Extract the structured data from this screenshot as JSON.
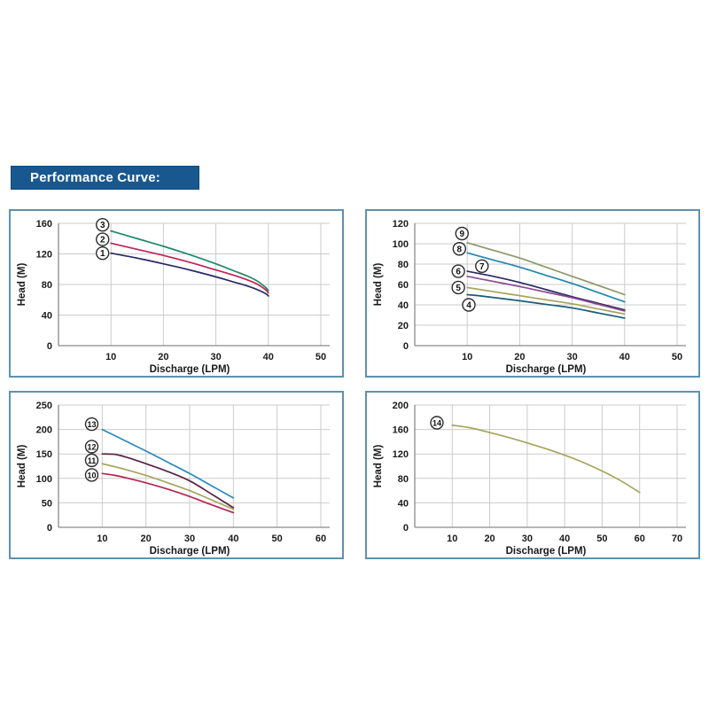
{
  "header": {
    "title": "Performance Curve:",
    "bg": "#19578f",
    "fg": "#ffffff"
  },
  "colors": {
    "panel_border": "#5d92b1",
    "grid": "#cbcbcb",
    "axis": "#8a8a8a",
    "text": "#1a1a1a",
    "badge_stroke": "#2b2b2b",
    "badge_fill": "#ffffff"
  },
  "chart_data": [
    {
      "id": "top-left",
      "type": "line",
      "title": "",
      "xlabel": "Discharge (LPM)",
      "ylabel": "Head (M)",
      "xlim": [
        0,
        50
      ],
      "ylim": [
        0,
        160
      ],
      "xticks": [
        10,
        20,
        30,
        40,
        50
      ],
      "yticks": [
        0,
        40,
        80,
        120,
        160
      ],
      "grid": true,
      "legend": "numbered-badges-at-curve-start",
      "series": [
        {
          "name": "3",
          "color": "#1d8a6a",
          "badge": [
            8.4,
            158
          ],
          "points": [
            [
              10,
              150
            ],
            [
              15,
              140
            ],
            [
              20,
              130
            ],
            [
              25,
              119
            ],
            [
              30,
              107
            ],
            [
              33,
              99
            ],
            [
              36,
              91
            ],
            [
              38,
              84
            ],
            [
              39.5,
              76
            ],
            [
              40,
              72
            ]
          ]
        },
        {
          "name": "2",
          "color": "#c02456",
          "badge": [
            8.4,
            139
          ],
          "points": [
            [
              10,
              134
            ],
            [
              15,
              126
            ],
            [
              20,
              118
            ],
            [
              25,
              109
            ],
            [
              30,
              99
            ],
            [
              33,
              93
            ],
            [
              36,
              86
            ],
            [
              38,
              80
            ],
            [
              39.5,
              73
            ],
            [
              40,
              69
            ]
          ]
        },
        {
          "name": "1",
          "color": "#2b2a66",
          "badge": [
            8.4,
            121
          ],
          "points": [
            [
              10,
              121
            ],
            [
              15,
              114.5
            ],
            [
              20,
              107
            ],
            [
              25,
              99
            ],
            [
              30,
              90
            ],
            [
              33,
              84
            ],
            [
              36,
              78
            ],
            [
              38,
              73
            ],
            [
              39.5,
              68
            ],
            [
              40,
              65
            ]
          ]
        }
      ]
    },
    {
      "id": "top-right",
      "type": "line",
      "title": "",
      "xlabel": "Discharge (LPM)",
      "ylabel": "Head (M)",
      "xlim": [
        0,
        50
      ],
      "ylim": [
        0,
        120
      ],
      "xticks": [
        10,
        20,
        30,
        40,
        50
      ],
      "yticks": [
        0,
        20,
        40,
        60,
        80,
        100,
        120
      ],
      "grid": true,
      "legend": "numbered-badges-at-curve-start",
      "series": [
        {
          "name": "9",
          "color": "#8e9768",
          "badge": [
            9,
            110
          ],
          "points": [
            [
              10,
              101
            ],
            [
              15,
              93.5
            ],
            [
              20,
              86
            ],
            [
              25,
              77
            ],
            [
              30,
              68
            ],
            [
              35,
              59
            ],
            [
              40,
              50
            ]
          ]
        },
        {
          "name": "8",
          "color": "#2386ae",
          "badge": [
            8.5,
            95
          ],
          "points": [
            [
              10,
              91
            ],
            [
              15,
              84
            ],
            [
              20,
              77
            ],
            [
              25,
              69
            ],
            [
              30,
              61
            ],
            [
              35,
              52
            ],
            [
              40,
              43
            ]
          ]
        },
        {
          "name": "7",
          "color": "#2b2a66",
          "badge": [
            12.8,
            78
          ],
          "points": [
            [
              10,
              73
            ],
            [
              15,
              68
            ],
            [
              20,
              62
            ],
            [
              25,
              55
            ],
            [
              30,
              48
            ],
            [
              35,
              41.5
            ],
            [
              40,
              35
            ]
          ]
        },
        {
          "name": "6",
          "color": "#8c4a92",
          "badge": [
            8.3,
            73
          ],
          "points": [
            [
              10,
              68
            ],
            [
              15,
              63
            ],
            [
              20,
              58
            ],
            [
              25,
              52.5
            ],
            [
              30,
              47
            ],
            [
              35,
              40.5
            ],
            [
              40,
              34
            ]
          ]
        },
        {
          "name": "5",
          "color": "#a6a55e",
          "badge": [
            8.3,
            57
          ],
          "points": [
            [
              10,
              57
            ],
            [
              15,
              53
            ],
            [
              20,
              49
            ],
            [
              25,
              45
            ],
            [
              30,
              41
            ],
            [
              35,
              36
            ],
            [
              40,
              31
            ]
          ]
        },
        {
          "name": "4",
          "color": "#1b5a78",
          "badge": [
            10.3,
            40
          ],
          "points": [
            [
              10,
              50
            ],
            [
              13,
              48.5
            ],
            [
              20,
              44
            ],
            [
              25,
              40.5
            ],
            [
              30,
              37
            ],
            [
              35,
              32
            ],
            [
              40,
              27
            ]
          ]
        }
      ]
    },
    {
      "id": "bottom-left",
      "type": "line",
      "title": "",
      "xlabel": "Discharge (LPM)",
      "ylabel": "Head (M)",
      "xlim": [
        0,
        60
      ],
      "ylim": [
        0,
        250
      ],
      "xticks": [
        10,
        20,
        30,
        40,
        50,
        60
      ],
      "yticks": [
        0,
        50,
        100,
        150,
        200,
        250
      ],
      "grid": true,
      "legend": "numbered-badges-at-curve-start",
      "series": [
        {
          "name": "13",
          "color": "#2a8ac2",
          "badge": [
            7.6,
            211
          ],
          "points": [
            [
              10,
              200
            ],
            [
              15,
              178
            ],
            [
              20,
              156
            ],
            [
              25,
              133
            ],
            [
              30,
              110
            ],
            [
              35,
              85
            ],
            [
              40,
              60
            ]
          ]
        },
        {
          "name": "12",
          "color": "#5a2444",
          "badge": [
            7.6,
            165
          ],
          "points": [
            [
              10,
              150
            ],
            [
              13,
              149
            ],
            [
              16,
              142
            ],
            [
              20,
              130
            ],
            [
              25,
              114
            ],
            [
              30,
              95
            ],
            [
              35,
              68
            ],
            [
              40,
              40
            ]
          ]
        },
        {
          "name": "11",
          "color": "#a6a55e",
          "badge": [
            7.6,
            137
          ],
          "points": [
            [
              10,
              130
            ],
            [
              15,
              119
            ],
            [
              20,
              106
            ],
            [
              25,
              91
            ],
            [
              30,
              75
            ],
            [
              35,
              56
            ],
            [
              40,
              37
            ]
          ]
        },
        {
          "name": "10",
          "color": "#b62652",
          "badge": [
            7.6,
            107
          ],
          "points": [
            [
              10,
              110
            ],
            [
              13,
              106
            ],
            [
              16,
              100
            ],
            [
              20,
              91
            ],
            [
              25,
              78
            ],
            [
              30,
              63
            ],
            [
              35,
              46
            ],
            [
              40,
              30
            ]
          ]
        }
      ]
    },
    {
      "id": "bottom-right",
      "type": "line",
      "title": "",
      "xlabel": "Discharge (LPM)",
      "ylabel": "Head (M)",
      "xlim": [
        0,
        70
      ],
      "ylim": [
        0,
        200
      ],
      "xticks": [
        10,
        20,
        30,
        40,
        50,
        60,
        70
      ],
      "yticks": [
        0,
        40,
        80,
        120,
        160,
        200
      ],
      "grid": true,
      "legend": "numbered-badges-at-curve-start",
      "series": [
        {
          "name": "14",
          "color": "#a6a55e",
          "badge": [
            5.9,
            171
          ],
          "points": [
            [
              10,
              167
            ],
            [
              15,
              162.5
            ],
            [
              20,
              155
            ],
            [
              25,
              147
            ],
            [
              30,
              138
            ],
            [
              35,
              128.5
            ],
            [
              40,
              118
            ],
            [
              45,
              106
            ],
            [
              50,
              92
            ],
            [
              55,
              76
            ],
            [
              60,
              57
            ]
          ]
        }
      ]
    }
  ]
}
